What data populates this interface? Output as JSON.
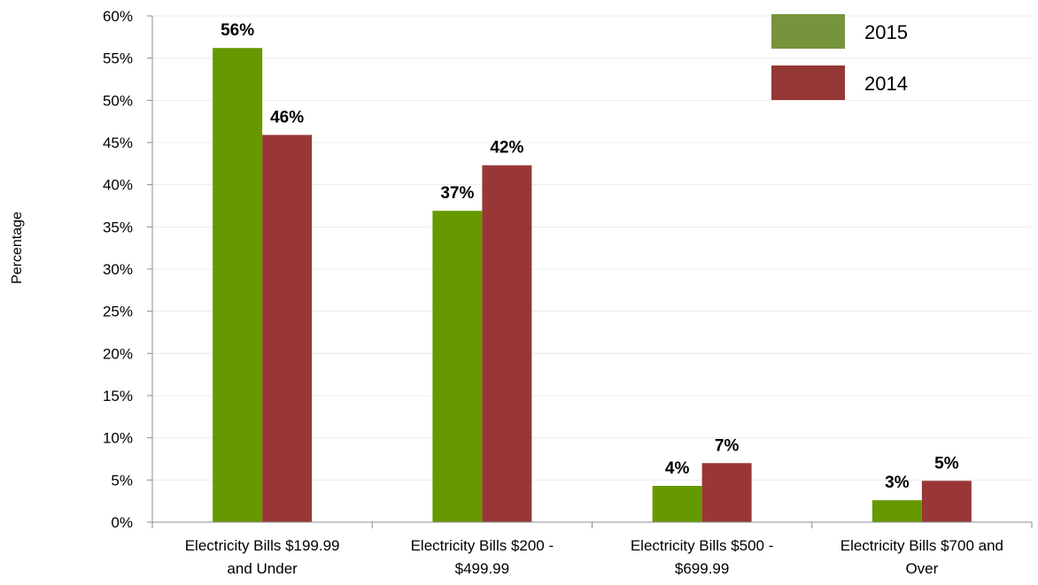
{
  "chart_data": {
    "type": "bar",
    "categories": [
      [
        "Electricity Bills $199.99",
        "and Under"
      ],
      [
        "Electricity Bills $200 -",
        "$499.99"
      ],
      [
        "Electricity Bills $500 -",
        "$699.99"
      ],
      [
        "Electricity Bills $700 and",
        "Over"
      ]
    ],
    "series": [
      {
        "name": "2015",
        "color": "#669900",
        "legend_color": "#77933C",
        "values": [
          56.2,
          36.9,
          4.3,
          2.6
        ],
        "labels": [
          "56%",
          "37%",
          "4%",
          "3%"
        ]
      },
      {
        "name": "2014",
        "color": "#993737",
        "legend_color": "#953735",
        "values": [
          45.9,
          42.3,
          7.0,
          4.9
        ],
        "labels": [
          "46%",
          "42%",
          "7%",
          "5%"
        ]
      }
    ],
    "ylabel": "Percentage",
    "ylim": [
      0,
      60
    ],
    "yticks": [
      0,
      5,
      10,
      15,
      20,
      25,
      30,
      35,
      40,
      45,
      50,
      55,
      60
    ],
    "ytick_suffix": "%",
    "grid": true,
    "legend_position": "top-right"
  }
}
